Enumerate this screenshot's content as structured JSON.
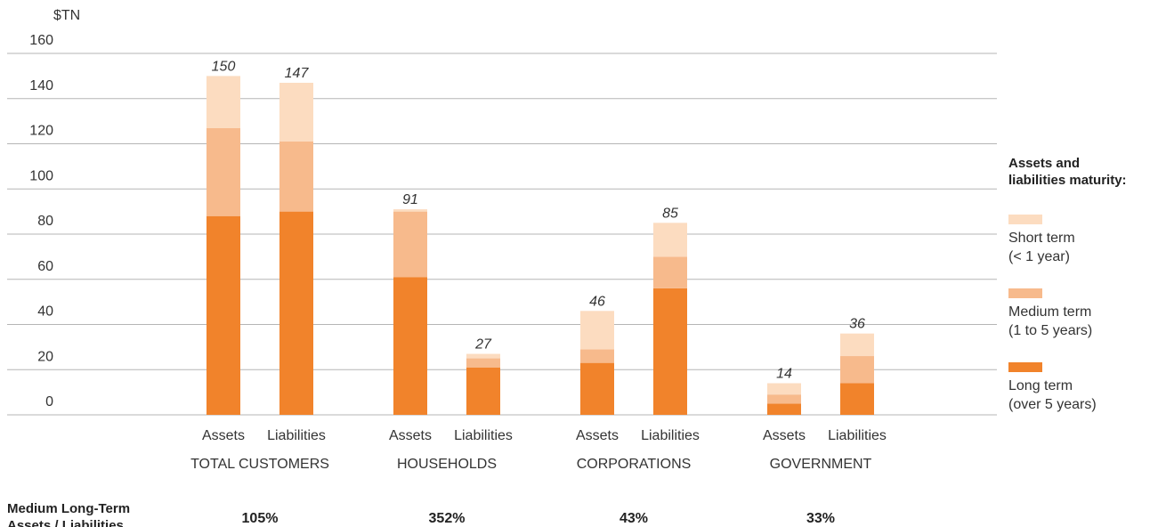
{
  "chart_data": {
    "type": "bar",
    "stacked": true,
    "unit_label": "$TN",
    "ylim": [
      0,
      160
    ],
    "yticks": [
      0,
      20,
      40,
      60,
      80,
      100,
      120,
      140,
      160
    ],
    "grid": true,
    "groups": [
      {
        "name": "TOTAL CUSTOMERS",
        "ratio": "105%",
        "bars": [
          {
            "label": "Assets",
            "total": "150",
            "values": {
              "long": 88,
              "medium": 39,
              "short": 23
            }
          },
          {
            "label": "Liabilities",
            "total": "147",
            "values": {
              "long": 90,
              "medium": 31,
              "short": 26
            }
          }
        ]
      },
      {
        "name": "HOUSEHOLDS",
        "ratio": "352%",
        "bars": [
          {
            "label": "Assets",
            "total": "91",
            "values": {
              "long": 61,
              "medium": 29,
              "short": 1
            }
          },
          {
            "label": "Liabilities",
            "total": "27",
            "values": {
              "long": 21,
              "medium": 4,
              "short": 2
            }
          }
        ]
      },
      {
        "name": "CORPORATIONS",
        "ratio": "43%",
        "bars": [
          {
            "label": "Assets",
            "total": "46",
            "values": {
              "long": 23,
              "medium": 6,
              "short": 17
            }
          },
          {
            "label": "Liabilities",
            "total": "85",
            "values": {
              "long": 56,
              "medium": 14,
              "short": 15
            }
          }
        ]
      },
      {
        "name": "GOVERNMENT",
        "ratio": "33%",
        "bars": [
          {
            "label": "Assets",
            "total": "14",
            "values": {
              "long": 5,
              "medium": 4,
              "short": 5
            }
          },
          {
            "label": "Liabilities",
            "total": "36",
            "values": {
              "long": 14,
              "medium": 12,
              "short": 10
            }
          }
        ]
      }
    ],
    "series": [
      {
        "key": "long",
        "name_line1": "Long term",
        "name_line2": "(over 5 years)",
        "color": "#f1832b"
      },
      {
        "key": "medium",
        "name_line1": "Medium term",
        "name_line2": "(1 to 5 years)",
        "color": "#f7ba8c"
      },
      {
        "key": "short",
        "name_line1": "Short term",
        "name_line2": "(< 1 year)",
        "color": "#fcdcc0"
      }
    ],
    "legend_title_line1": "Assets and",
    "legend_title_line2": "liabilities maturity:",
    "legend_placement": "right",
    "ratio_title_line1": "Medium Long-Term",
    "ratio_title_line2": "Assets / Liabilities"
  }
}
